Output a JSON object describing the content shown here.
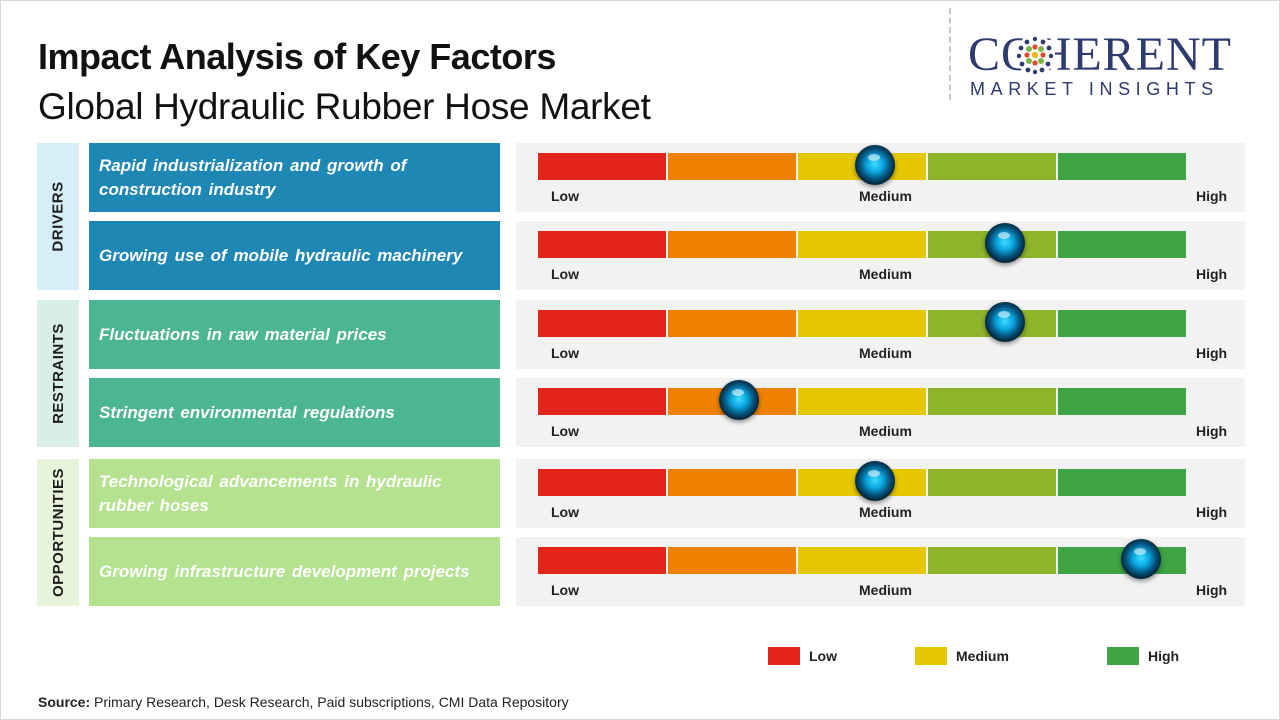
{
  "title": "Impact Analysis of Key Factors",
  "subtitle": "Global Hydraulic Rubber Hose Market",
  "logo": {
    "brand": "COHERENT",
    "tagline": "MARKET INSIGHTS"
  },
  "colors": {
    "drivers": "#1f87b3",
    "drivers_label_bg": "#d6eef8",
    "restraints": "#4cb592",
    "restraints_label_bg": "#d9efe6",
    "opportunities": "#b4e28e",
    "opportunities_label_bg": "#e6f4dc",
    "gauge_segments": [
      "#e3241b",
      "#ef8100",
      "#e6c800",
      "#8db42a",
      "#3fa443"
    ]
  },
  "scale_labels": {
    "low": "Low",
    "medium": "Medium",
    "high": "High"
  },
  "chart_data": {
    "type": "gauge",
    "scale": [
      "Low",
      "Medium",
      "High"
    ],
    "categories": [
      {
        "name": "DRIVERS",
        "factors": [
          {
            "label": "Rapid industrialization  and growth of construction industry",
            "impact": 0.52
          },
          {
            "label": "Growing use of mobile hydraulic machinery",
            "impact": 0.72
          }
        ]
      },
      {
        "name": "RESTRAINTS",
        "factors": [
          {
            "label": "Fluctuations in raw material prices",
            "impact": 0.72
          },
          {
            "label": "Stringent environmental  regulations",
            "impact": 0.31
          }
        ]
      },
      {
        "name": "OPPORTUNITIES",
        "factors": [
          {
            "label": "Technological  advancements  in hydraulic rubber hoses",
            "impact": 0.52
          },
          {
            "label": "Growing infrastructure  development projects",
            "impact": 0.93
          }
        ]
      }
    ]
  },
  "legend": [
    {
      "label": "Low",
      "color": "#e3241b"
    },
    {
      "label": "Medium",
      "color": "#e6c800"
    },
    {
      "label": "High",
      "color": "#3fa443"
    }
  ],
  "source": {
    "prefix": "Source:",
    "text": " Primary Research, Desk Research, Paid subscriptions, CMI Data Repository"
  }
}
